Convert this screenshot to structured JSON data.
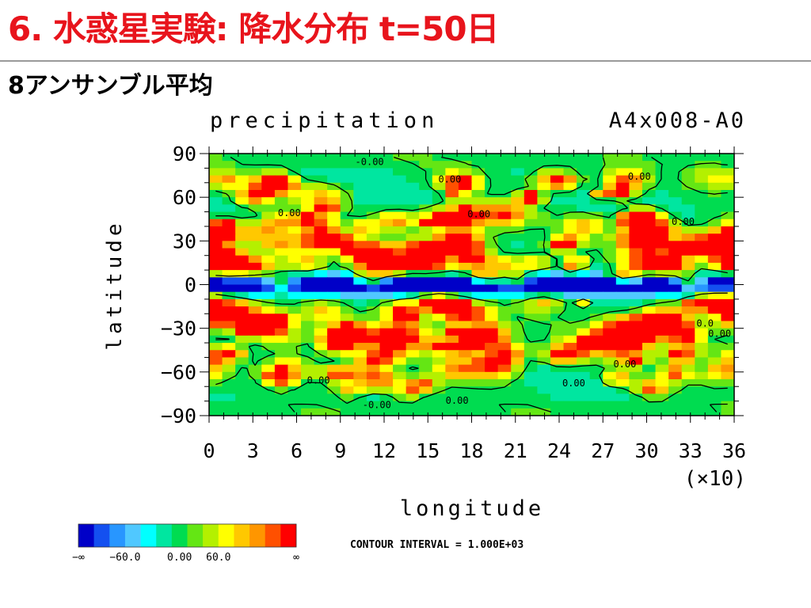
{
  "slide": {
    "title": "6. 水惑星実験: 降水分布 t=50日",
    "subtitle": "8アンサンブル平均"
  },
  "chart_data": {
    "type": "heatmap",
    "variable_label": "precipitation",
    "run_label": "A4x008-A0",
    "xlabel": "longitude",
    "ylabel": "latitude",
    "x_scale_note": "(×10)",
    "xlim": [
      0,
      36
    ],
    "ylim": [
      -90,
      90
    ],
    "xticks": [
      "0",
      "3",
      "6",
      "9",
      "12",
      "15",
      "18",
      "21",
      "24",
      "27",
      "30",
      "33",
      "36"
    ],
    "yticks": [
      "90",
      "60",
      "30",
      "0",
      "−30",
      "−60",
      "−90"
    ],
    "contour_labels": [
      {
        "lon": 11,
        "lat": 84,
        "text": "-0.00"
      },
      {
        "lon": 16.5,
        "lat": 72,
        "text": "0.00"
      },
      {
        "lon": 29.5,
        "lat": 74,
        "text": "0.00"
      },
      {
        "lon": 5.5,
        "lat": 49,
        "text": "0.00"
      },
      {
        "lon": 18.5,
        "lat": 48,
        "text": "0.00"
      },
      {
        "lon": 32.5,
        "lat": 43,
        "text": "0.00"
      },
      {
        "lon": 34,
        "lat": -27,
        "text": "0.0"
      },
      {
        "lon": 35,
        "lat": -34,
        "text": "0.00"
      },
      {
        "lon": 28.5,
        "lat": -55,
        "text": "0.00"
      },
      {
        "lon": 7.5,
        "lat": -66,
        "text": "0.00"
      },
      {
        "lon": 25,
        "lat": -68,
        "text": "0.00"
      },
      {
        "lon": 17,
        "lat": -80,
        "text": "0.00"
      },
      {
        "lon": 11.5,
        "lat": -83,
        "text": "-0.00"
      }
    ],
    "colorbar": {
      "colors": [
        "#0000c8",
        "#1450f0",
        "#2896ff",
        "#50c8ff",
        "#00ffff",
        "#00e6a0",
        "#00dc50",
        "#64e614",
        "#b4f000",
        "#ffff00",
        "#ffc800",
        "#ff9600",
        "#ff5000",
        "#ff0000"
      ],
      "tick_labels": [
        "−∞",
        "−60.0",
        "0.00",
        "60.0",
        "∞"
      ]
    },
    "contour_interval_text": "CONTOUR INTERVAL = 1.000E+03"
  }
}
